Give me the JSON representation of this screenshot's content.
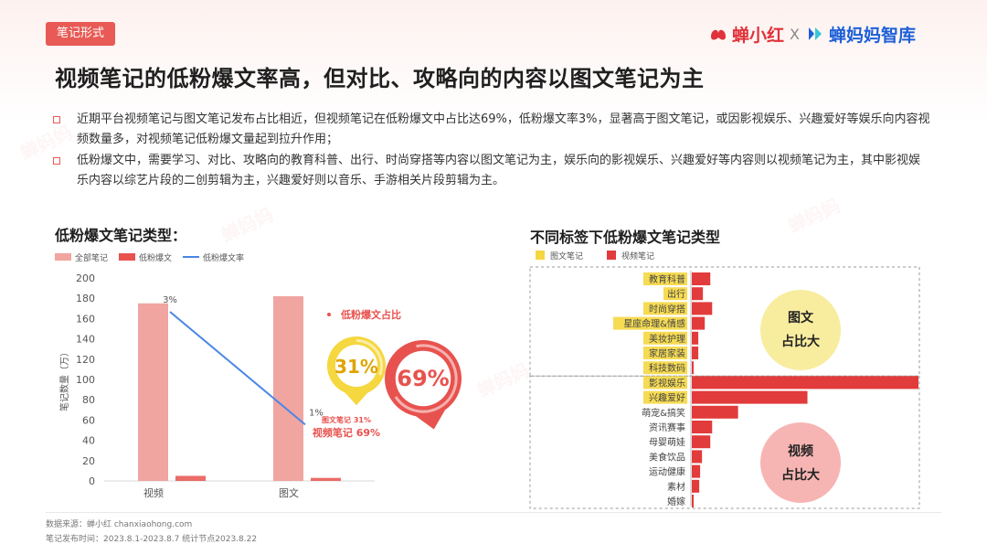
{
  "header": {
    "tag": "笔记形式",
    "logo_left": "蝉小红",
    "logo_x": "X",
    "logo_right": "蝉妈妈智库",
    "title": "视频笔记的低粉爆文率高，但对比、攻略向的内容以图文笔记为主"
  },
  "bullets": [
    "近期平台视频笔记与图文笔记发布占比相近，但视频笔记在低粉爆文中占比达69%，低粉爆文率3%，显著高于图文笔记，或因影视娱乐、兴趣爱好等娱乐向内容视频数量多，对视频笔记低粉爆文量起到拉升作用；",
    "低粉爆文中，需要学习、对比、攻略向的教育科普、出行、时尚穿搭等内容以图文笔记为主，娱乐向的影视娱乐、兴趣爱好等内容则以视频笔记为主，其中影视娱乐内容以综艺片段的二创剪辑为主，兴趣爱好则以音乐、手游相关片段剪辑为主。"
  ],
  "left_section_title": "低粉爆文笔记类型：",
  "right_section_title": "不同标签下低粉爆文笔记类型",
  "chart_data": [
    {
      "type": "bar",
      "categories": [
        "视频",
        "图文"
      ],
      "series": [
        {
          "name": "全部笔记",
          "values": [
            175,
            182
          ],
          "color": "#f0a5a0"
        },
        {
          "name": "低粉爆文",
          "values": [
            5,
            3
          ],
          "color": "#e8524e"
        },
        {
          "name": "低粉爆文率",
          "kind": "line",
          "values": [
            3,
            1
          ],
          "labels": [
            "3%",
            "1%"
          ],
          "color": "#4a86e8"
        }
      ],
      "ylabel": "笔记数量（万）",
      "ylim": [
        0,
        200
      ],
      "yticks": [
        0,
        20,
        40,
        60,
        80,
        100,
        120,
        140,
        160,
        180,
        200
      ],
      "line_ylim": [
        0,
        3.6
      ],
      "legend": "top-left"
    },
    {
      "type": "pie",
      "title": "低粉爆文占比",
      "slices": [
        {
          "name": "图文笔记",
          "value": 31,
          "label": "31%",
          "color": "#f5d740"
        },
        {
          "name": "视频笔记",
          "value": 69,
          "label": "69%",
          "color": "#e8524e"
        }
      ],
      "legend_lines": [
        "图文笔记 31%",
        "视频笔记 69%"
      ]
    },
    {
      "type": "bar",
      "orientation": "horizontal",
      "categories": [
        "教育科普",
        "出行",
        "时尚穿搭",
        "星座命理&情感",
        "美妆护理",
        "家居家装",
        "科技数码",
        "影视娱乐",
        "兴趣爱好",
        "萌宠&搞笑",
        "资讯赛事",
        "母婴萌娃",
        "美食饮品",
        "运动健康",
        "素材",
        "婚嫁"
      ],
      "values": [
        20,
        12,
        22,
        14,
        7,
        7,
        2,
        245,
        125,
        50,
        22,
        20,
        11,
        9,
        8,
        2
      ],
      "group_labels": [
        "图文笔记",
        "视频笔记"
      ],
      "highlight": {
        "图文笔记": [
          "教育科普",
          "出行",
          "时尚穿搭",
          "星座命理&情感",
          "美妆护理",
          "家居家装",
          "科技数码"
        ],
        "视频笔记": [
          "影视娱乐",
          "兴趣爱好"
        ]
      },
      "colors": {
        "图文笔记": "#f5d740",
        "视频笔记": "#e23b3b"
      },
      "callouts": [
        {
          "lines": [
            "图文",
            "占比大"
          ],
          "color": "#f8ec9e"
        },
        {
          "lines": [
            "视频",
            "占比大"
          ],
          "color": "#f6b5b3"
        }
      ]
    }
  ],
  "footer": {
    "source": "数据来源：蝉小红 chanxiaohong.com",
    "period": "笔记发布时间：2023.8.1-2023.8.7 统计节点2023.8.22"
  }
}
